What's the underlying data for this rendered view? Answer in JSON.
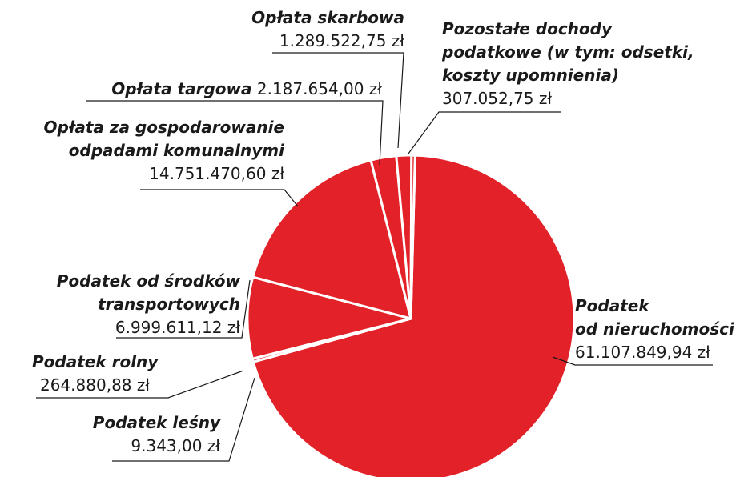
{
  "chart_data": {
    "type": "pie",
    "categories": [
      "Podatek\nod nieruchomości",
      "Podatek leśny",
      "Podatek rolny",
      "Podatek od środków\ntransportowych",
      "Opłata za gospodarowanie\nodpadami komunalnymi",
      "Opłata targowa",
      "Opłata skarbowa",
      "Pozostałe dochody\npodatkowe (w tym: odsetki,\nkoszty upomnienia)"
    ],
    "values": [
      61107849.94,
      9343,
      264880.88,
      6999611.12,
      14751470.6,
      2187654,
      1289522.75,
      307052.75
    ],
    "value_labels": [
      "61.107.849,94 zł",
      "9.343,00 zł",
      "264.880,88 zł",
      "6.999.611,12 zł",
      "14.751.470,60 zł",
      "2.187.654,00 zł",
      "1.289.522,75 zł",
      "307.052,75 zł"
    ],
    "color": "#e32128"
  }
}
